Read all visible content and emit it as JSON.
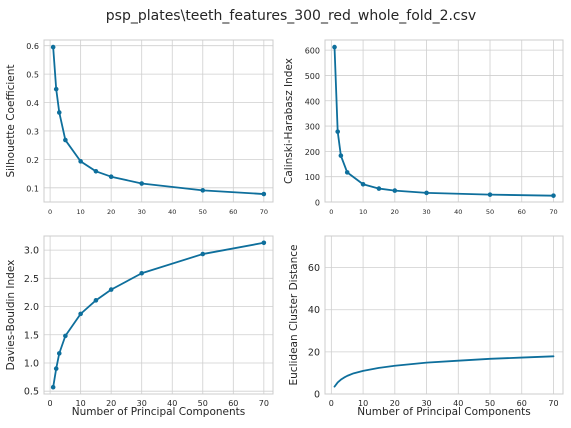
{
  "figure": {
    "title": "psp_plates\\teeth_features_300_red_whole_fold_2.csv",
    "line_color": "#0e6f9c",
    "grid_color": "#cfcfcf",
    "frame_color": "#cccccc"
  },
  "chart_data": [
    {
      "type": "line",
      "xlabel": "",
      "ylabel": "Silhouette Coefficient",
      "xlim": [
        -2,
        73
      ],
      "ylim": [
        0.05,
        0.62
      ],
      "xticks": [
        0,
        10,
        20,
        30,
        40,
        50,
        60,
        70
      ],
      "yticks": [
        0.1,
        0.2,
        0.3,
        0.4,
        0.5,
        0.6
      ],
      "ytick_labels": [
        "0.1",
        "0.2",
        "0.3",
        "0.4",
        "0.5",
        "0.6"
      ],
      "markers": true,
      "grid": true,
      "series": [
        {
          "x": [
            1,
            2,
            3,
            5,
            10,
            15,
            20,
            30,
            50,
            70
          ],
          "values": [
            0.595,
            0.447,
            0.365,
            0.268,
            0.193,
            0.158,
            0.139,
            0.115,
            0.091,
            0.078
          ]
        }
      ]
    },
    {
      "type": "line",
      "xlabel": "",
      "ylabel": "Calinski-Harabasz Index",
      "xlim": [
        -2,
        73
      ],
      "ylim": [
        0,
        640
      ],
      "xticks": [
        0,
        10,
        20,
        30,
        40,
        50,
        60,
        70
      ],
      "yticks": [
        0,
        100,
        200,
        300,
        400,
        500,
        600
      ],
      "ytick_labels": [
        "0",
        "100",
        "200",
        "300",
        "400",
        "500",
        "600"
      ],
      "markers": true,
      "grid": true,
      "series": [
        {
          "x": [
            1,
            2,
            3,
            5,
            10,
            15,
            20,
            30,
            50,
            70
          ],
          "values": [
            612,
            278,
            183,
            117,
            70,
            53,
            45,
            36,
            29,
            25
          ]
        }
      ]
    },
    {
      "type": "line",
      "xlabel": "Number of Principal Components",
      "ylabel": "Davies-Bouldin Index",
      "xlim": [
        -2,
        73
      ],
      "ylim": [
        0.45,
        3.25
      ],
      "xticks": [
        0,
        10,
        20,
        30,
        40,
        50,
        60,
        70
      ],
      "yticks": [
        0.5,
        1.0,
        1.5,
        2.0,
        2.5,
        3.0
      ],
      "ytick_labels": [
        "0.5",
        "1.0",
        "1.5",
        "2.0",
        "2.5",
        "3.0"
      ],
      "markers": true,
      "grid": true,
      "series": [
        {
          "x": [
            1,
            2,
            3,
            5,
            10,
            15,
            20,
            30,
            50,
            70
          ],
          "values": [
            0.57,
            0.9,
            1.17,
            1.48,
            1.87,
            2.11,
            2.3,
            2.59,
            2.93,
            3.13
          ]
        }
      ]
    },
    {
      "type": "line",
      "xlabel": "Number of Principal Components",
      "ylabel": "Euclidean Cluster Distance",
      "xlim": [
        -2,
        73
      ],
      "ylim": [
        0,
        75
      ],
      "xticks": [
        0,
        10,
        20,
        30,
        40,
        50,
        60,
        70
      ],
      "yticks": [
        0,
        20,
        40,
        60
      ],
      "ytick_labels": [
        "0",
        "20",
        "40",
        "60"
      ],
      "markers": false,
      "grid": true,
      "series": [
        {
          "x": [
            1,
            2,
            3,
            4,
            5,
            7,
            10,
            15,
            20,
            30,
            40,
            50,
            60,
            70
          ],
          "values": [
            3.5,
            5.5,
            6.8,
            7.8,
            8.6,
            9.8,
            11.0,
            12.4,
            13.4,
            14.9,
            15.8,
            16.7,
            17.3,
            17.9
          ]
        }
      ]
    }
  ]
}
